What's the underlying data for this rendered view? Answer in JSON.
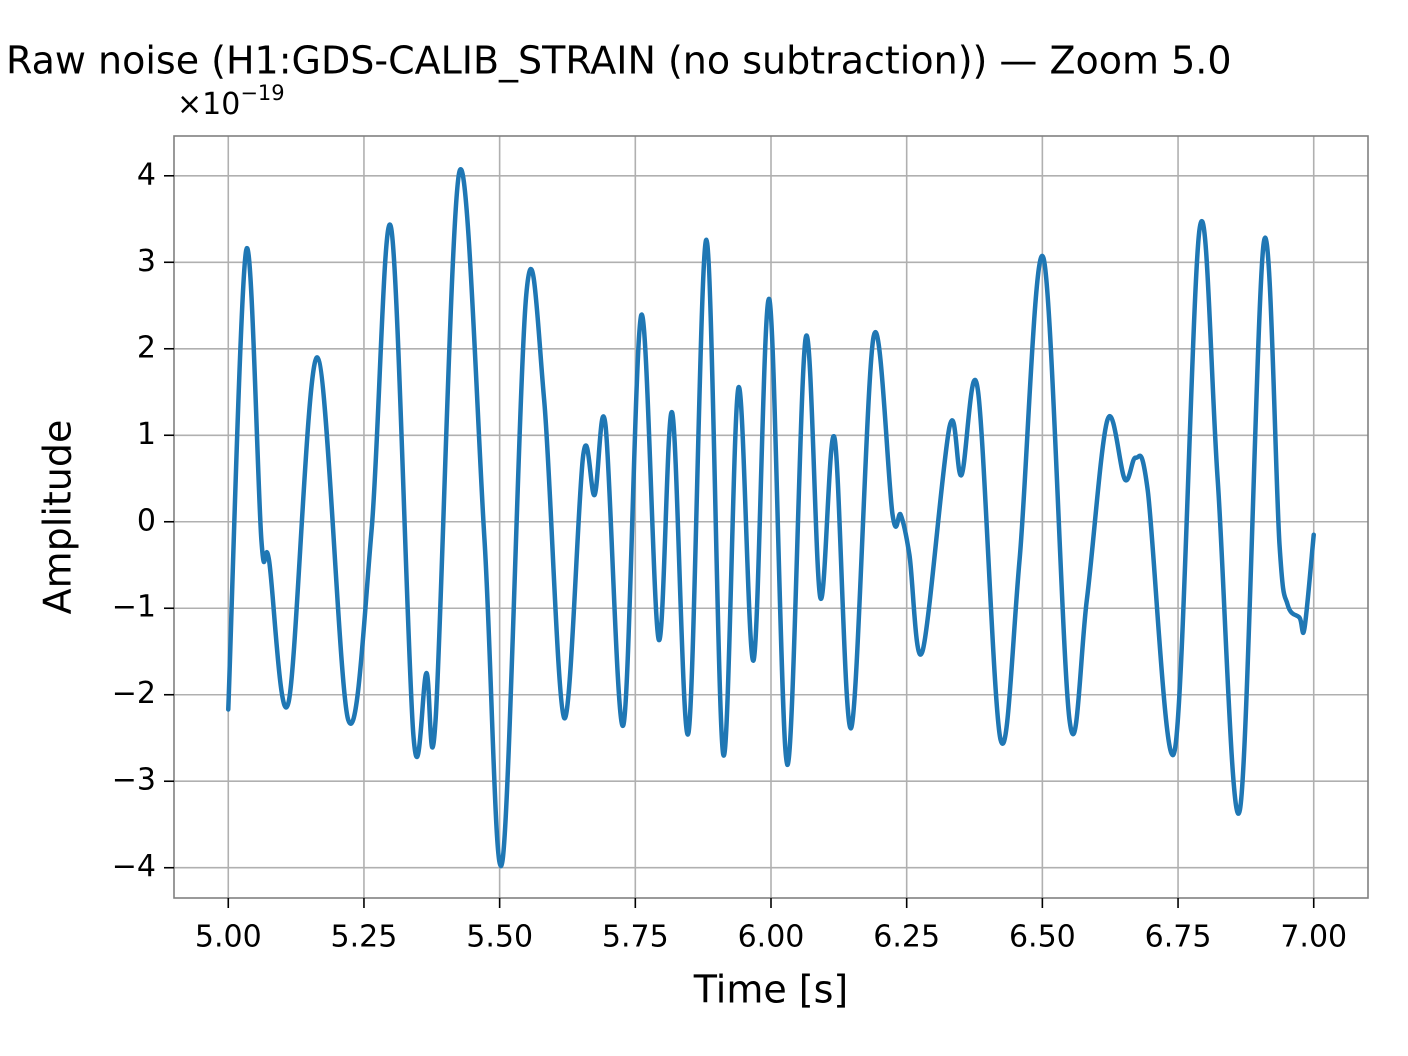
{
  "chart_data": {
    "type": "line",
    "title": "Raw noise (H1:GDS-CALIB_STRAIN (no subtraction)) — Zoom 5.0",
    "offset_text": {
      "base": "×10",
      "exponent": "−19"
    },
    "x_label": "Time [s]",
    "y_label": "Amplitude",
    "grid": true,
    "xlim": [
      4.9,
      7.1
    ],
    "ylim": [
      -4.35,
      4.46
    ],
    "xticks": [
      {
        "value": 5.0,
        "label": "5.00"
      },
      {
        "value": 5.25,
        "label": "5.25"
      },
      {
        "value": 5.5,
        "label": "5.50"
      },
      {
        "value": 5.75,
        "label": "5.75"
      },
      {
        "value": 6.0,
        "label": "6.00"
      },
      {
        "value": 6.25,
        "label": "6.25"
      },
      {
        "value": 6.5,
        "label": "6.50"
      },
      {
        "value": 6.75,
        "label": "6.75"
      },
      {
        "value": 7.0,
        "label": "7.00"
      }
    ],
    "yticks": [
      {
        "value": -4,
        "label": "−4"
      },
      {
        "value": -3,
        "label": "−3"
      },
      {
        "value": -2,
        "label": "−2"
      },
      {
        "value": -1,
        "label": "−1"
      },
      0,
      1,
      2,
      3,
      4
    ],
    "x": [
      5.0,
      5.033,
      5.061,
      5.075,
      5.111,
      5.164,
      5.221,
      5.264,
      5.3,
      5.341,
      5.365,
      5.382,
      5.426,
      5.472,
      5.505,
      5.549,
      5.582,
      5.619,
      5.654,
      5.675,
      5.695,
      5.728,
      5.761,
      5.793,
      5.818,
      5.848,
      5.881,
      5.912,
      5.94,
      5.968,
      5.997,
      6.03,
      6.064,
      6.091,
      6.117,
      6.148,
      6.189,
      6.224,
      6.239,
      6.255,
      6.279,
      6.329,
      6.351,
      6.381,
      6.423,
      6.458,
      6.502,
      6.55,
      6.582,
      6.62,
      6.652,
      6.672,
      6.694,
      6.744,
      6.79,
      6.823,
      6.864,
      6.908,
      6.937,
      6.952,
      6.974,
      6.983,
      7.0
    ],
    "series": [
      {
        "color": "#1f77b4",
        "values": [
          -2.17,
          3.14,
          -0.21,
          -0.44,
          -2.09,
          1.9,
          -2.29,
          -0.1,
          3.4,
          -2.46,
          -1.75,
          -2.29,
          4.05,
          -0.2,
          -3.93,
          2.62,
          1.41,
          -2.27,
          0.77,
          0.31,
          1.12,
          -2.35,
          2.39,
          -1.36,
          1.26,
          -2.44,
          3.26,
          -2.69,
          1.55,
          -1.6,
          2.57,
          -2.81,
          2.13,
          -0.88,
          0.97,
          -2.38,
          2.14,
          0.08,
          0.08,
          -0.38,
          -1.5,
          1.1,
          0.54,
          1.53,
          -2.52,
          -0.44,
          3.05,
          -2.29,
          -0.9,
          1.18,
          0.49,
          0.74,
          0.37,
          -2.64,
          3.4,
          0.49,
          -3.33,
          3.23,
          -0.27,
          -0.96,
          -1.11,
          -1.23,
          -0.15
        ]
      }
    ]
  }
}
